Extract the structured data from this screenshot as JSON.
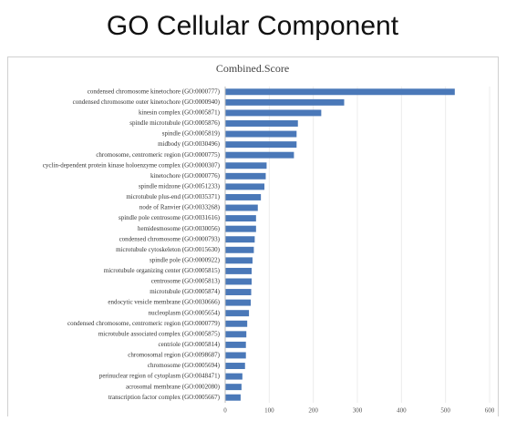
{
  "chart_data": {
    "type": "bar",
    "orientation": "horizontal",
    "page_title": "GO Cellular Component",
    "title": "Combined.Score",
    "categories": [
      "condensed chromosome kinetochore (GO:0000777)",
      "condensed chromosome outer kinetochore (GO:0000940)",
      "kinesin complex (GO:0005871)",
      "spindle microtubule (GO:0005876)",
      "spindle (GO:0005819)",
      "midbody (GO:0030496)",
      "chromosome, centromeric region (GO:0000775)",
      "cyclin-dependent protein kinase holoenzyme complex (GO:0000307)",
      "kinetochore (GO:0000776)",
      "spindle midzone (GO:0051233)",
      "microtubule plus-end (GO:0035371)",
      "node of Ranvier (GO:0033268)",
      "spindle pole centrosome (GO:0031616)",
      "hemidesmosome (GO:0030056)",
      "condensed chromosome (GO:0000793)",
      "microtubule cytoskeleton (GO:0015630)",
      "spindle pole (GO:0000922)",
      "microtubule organizing center (GO:0005815)",
      "centrosome (GO:0005813)",
      "microtubule (GO:0005874)",
      "endocytic vesicle membrane (GO:0030666)",
      "nucleoplasm (GO:0005654)",
      "condensed chromosome, centromeric region (GO:0000779)",
      "microtubule associated complex (GO:0005875)",
      "centriole (GO:0005814)",
      "chromosomal region (GO:0098687)",
      "chromosome (GO:0005694)",
      "perinuclear region of cytoplasm (GO:0048471)",
      "acrosomal membrane (GO:0002080)",
      "transcription factor complex (GO:0005667)"
    ],
    "values": [
      521,
      270,
      218,
      165,
      162,
      162,
      156,
      94,
      92,
      89,
      81,
      74,
      70,
      70,
      67,
      65,
      62,
      60,
      60,
      59,
      58,
      54,
      50,
      48,
      47,
      47,
      45,
      39,
      37,
      35
    ],
    "color": "#4a78b8",
    "xlim": [
      0,
      600
    ],
    "xticks": [
      0,
      100,
      200,
      300,
      400,
      500,
      600
    ],
    "grid": true
  }
}
